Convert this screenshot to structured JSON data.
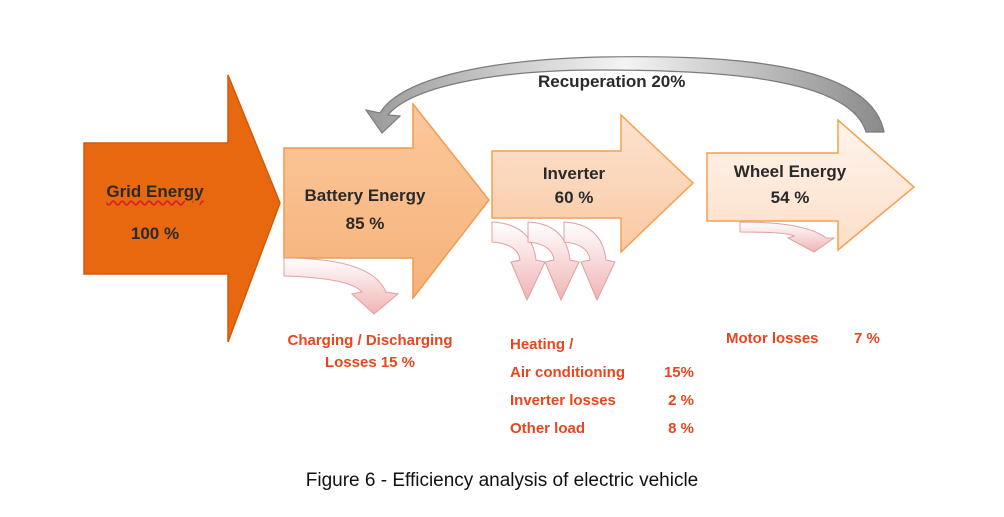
{
  "stages": [
    {
      "title": "Grid Energy",
      "value": "100 %"
    },
    {
      "title": "Battery Energy",
      "value": "85 %"
    },
    {
      "title": "Inverter",
      "value": "60 %"
    },
    {
      "title": "Wheel Energy",
      "value": "54 %"
    }
  ],
  "recuperation": "Recuperation 20%",
  "losses": {
    "battery": [
      "Charging / Discharging",
      "Losses 15 %"
    ],
    "inverter": [
      {
        "label": "Heating /",
        "value": ""
      },
      {
        "label": "Air conditioning",
        "value": "15%"
      },
      {
        "label": "Inverter losses",
        "value": "2 %"
      },
      {
        "label": "Other load",
        "value": "8 %"
      }
    ],
    "wheel": {
      "label": "Motor losses",
      "value": "7 %"
    }
  },
  "caption": "Figure 6 - Efficiency analysis of electric vehicle",
  "colors": {
    "grid": "#e8680f",
    "battery": "#f8bd8c",
    "inverter": "#fbd4b4",
    "wheel": "#fde9db",
    "arrow_border": "#f5a050",
    "loss_text": "#e8461e",
    "recuperation_arrow": "#d9d9d9"
  }
}
